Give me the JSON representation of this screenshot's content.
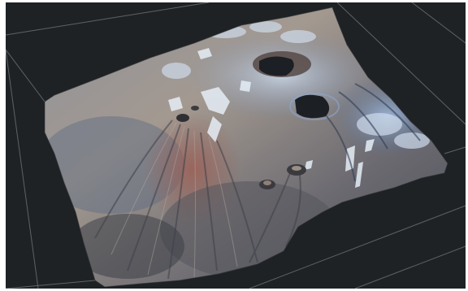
{
  "scene": {
    "description_visible_text": "",
    "background_color": "#1f2224",
    "grid_color": "#6d7377",
    "terrain_colors": {
      "slope_tan": "#9a8f86",
      "slope_shadow": "#4a4b52",
      "rust": "#8a5d52",
      "snow": "#e6eef6",
      "ice_blue": "#8aa7cf",
      "crater_dark": "#1c1f24"
    },
    "icons": {
      "terrain": "terrain-mesh-icon",
      "grid": "ground-grid-icon"
    }
  }
}
